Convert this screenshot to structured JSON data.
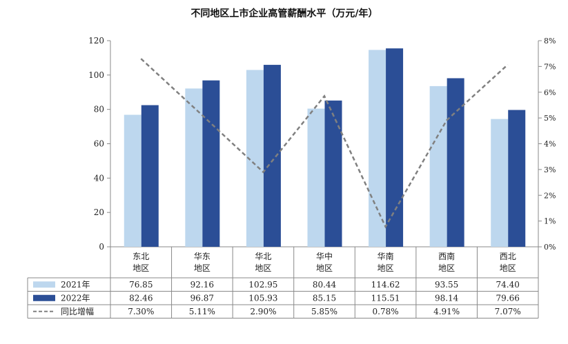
{
  "chart_data": {
    "type": "bar",
    "title": "不同地区上市企业高管薪酬水平（万元/年）",
    "categories": [
      "东北\n地区",
      "华东\n地区",
      "华北\n地区",
      "华中\n地区",
      "华南\n地区",
      "西南\n地区",
      "西北\n地区"
    ],
    "series": [
      {
        "name": "2021年",
        "type": "bar",
        "axis": "left",
        "color": "#bdd7ee",
        "values": [
          76.85,
          92.16,
          102.95,
          80.44,
          114.62,
          93.55,
          74.4
        ],
        "labels": [
          "76.85",
          "92.16",
          "102.95",
          "80.44",
          "114.62",
          "93.55",
          "74.40"
        ]
      },
      {
        "name": "2022年",
        "type": "bar",
        "axis": "left",
        "color": "#2b4e96",
        "values": [
          82.46,
          96.87,
          105.93,
          85.15,
          115.51,
          98.14,
          79.66
        ],
        "labels": [
          "82.46",
          "96.87",
          "105.93",
          "85.15",
          "115.51",
          "98.14",
          "79.66"
        ]
      },
      {
        "name": "同比增幅",
        "type": "line",
        "axis": "right",
        "color": "#808080",
        "dash": true,
        "values": [
          7.3,
          5.11,
          2.9,
          5.85,
          0.78,
          4.91,
          7.07
        ],
        "labels": [
          "7.30%",
          "5.11%",
          "2.90%",
          "5.85%",
          "0.78%",
          "4.91%",
          "7.07%"
        ]
      }
    ],
    "y_left": {
      "min": 0,
      "max": 120,
      "ticks": [
        0,
        20,
        40,
        60,
        80,
        100,
        120
      ],
      "tick_labels": [
        "0",
        "20",
        "40",
        "60",
        "80",
        "100",
        "120"
      ]
    },
    "y_right": {
      "min": 0,
      "max": 8,
      "ticks": [
        0,
        1,
        2,
        3,
        4,
        5,
        6,
        7,
        8
      ],
      "tick_labels": [
        "0%",
        "1%",
        "2%",
        "3%",
        "4%",
        "5%",
        "6%",
        "7%",
        "8%"
      ]
    },
    "grid": false,
    "legend": "data-table"
  }
}
